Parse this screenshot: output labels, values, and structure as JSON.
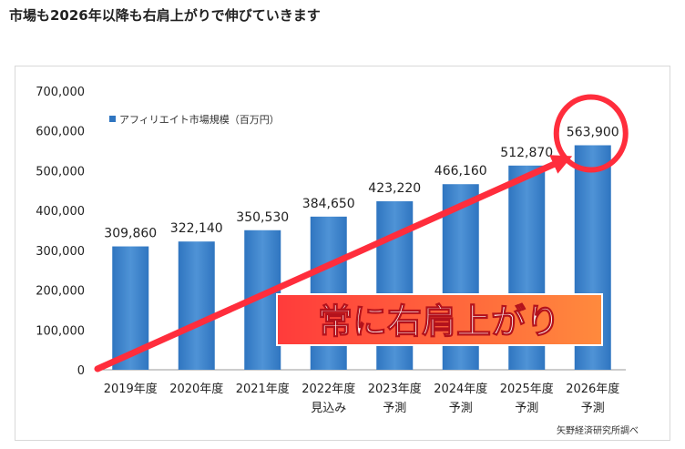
{
  "page": {
    "title": "市場も2026年以降も右肩上がりで伸びていきます"
  },
  "chart_data": {
    "type": "bar",
    "categories": [
      "2019年度",
      "2020年度",
      "2021年度",
      "2022年度",
      "2023年度",
      "2024年度",
      "2025年度",
      "2026年度"
    ],
    "category_sublabels": [
      "",
      "",
      "",
      "見込み",
      "予測",
      "予測",
      "予測",
      "予測"
    ],
    "values": [
      309860,
      322140,
      350530,
      384650,
      423220,
      466160,
      512870,
      563900
    ],
    "value_labels": [
      "309,860",
      "322,140",
      "350,530",
      "384,650",
      "423,220",
      "466,160",
      "512,870",
      "563,900"
    ],
    "series": [
      {
        "name": "アフィリエイト市場規模（百万円）",
        "values": [
          309860,
          322140,
          350530,
          384650,
          423220,
          466160,
          512870,
          563900
        ]
      }
    ],
    "ylim": [
      0,
      700000
    ],
    "yticks": [
      0,
      100000,
      200000,
      300000,
      400000,
      500000,
      600000,
      700000
    ],
    "ytick_labels": [
      "0",
      "100,000",
      "200,000",
      "300,000",
      "400,000",
      "500,000",
      "600,000",
      "700,000"
    ],
    "grid": false,
    "legend_placement": "top-left",
    "source": "矢野経済研究所調べ",
    "annotation": {
      "text": "常に右肩上がり",
      "highlighted_category": "2026年度"
    },
    "colors": {
      "bar": "#2f75c0",
      "bar_light": "#4f93d6",
      "arrow": "#ff2d3c",
      "circle": "#ff2d3c",
      "callout_bg": "#ff3b3b",
      "callout_edge": "#ff8a3d"
    }
  }
}
